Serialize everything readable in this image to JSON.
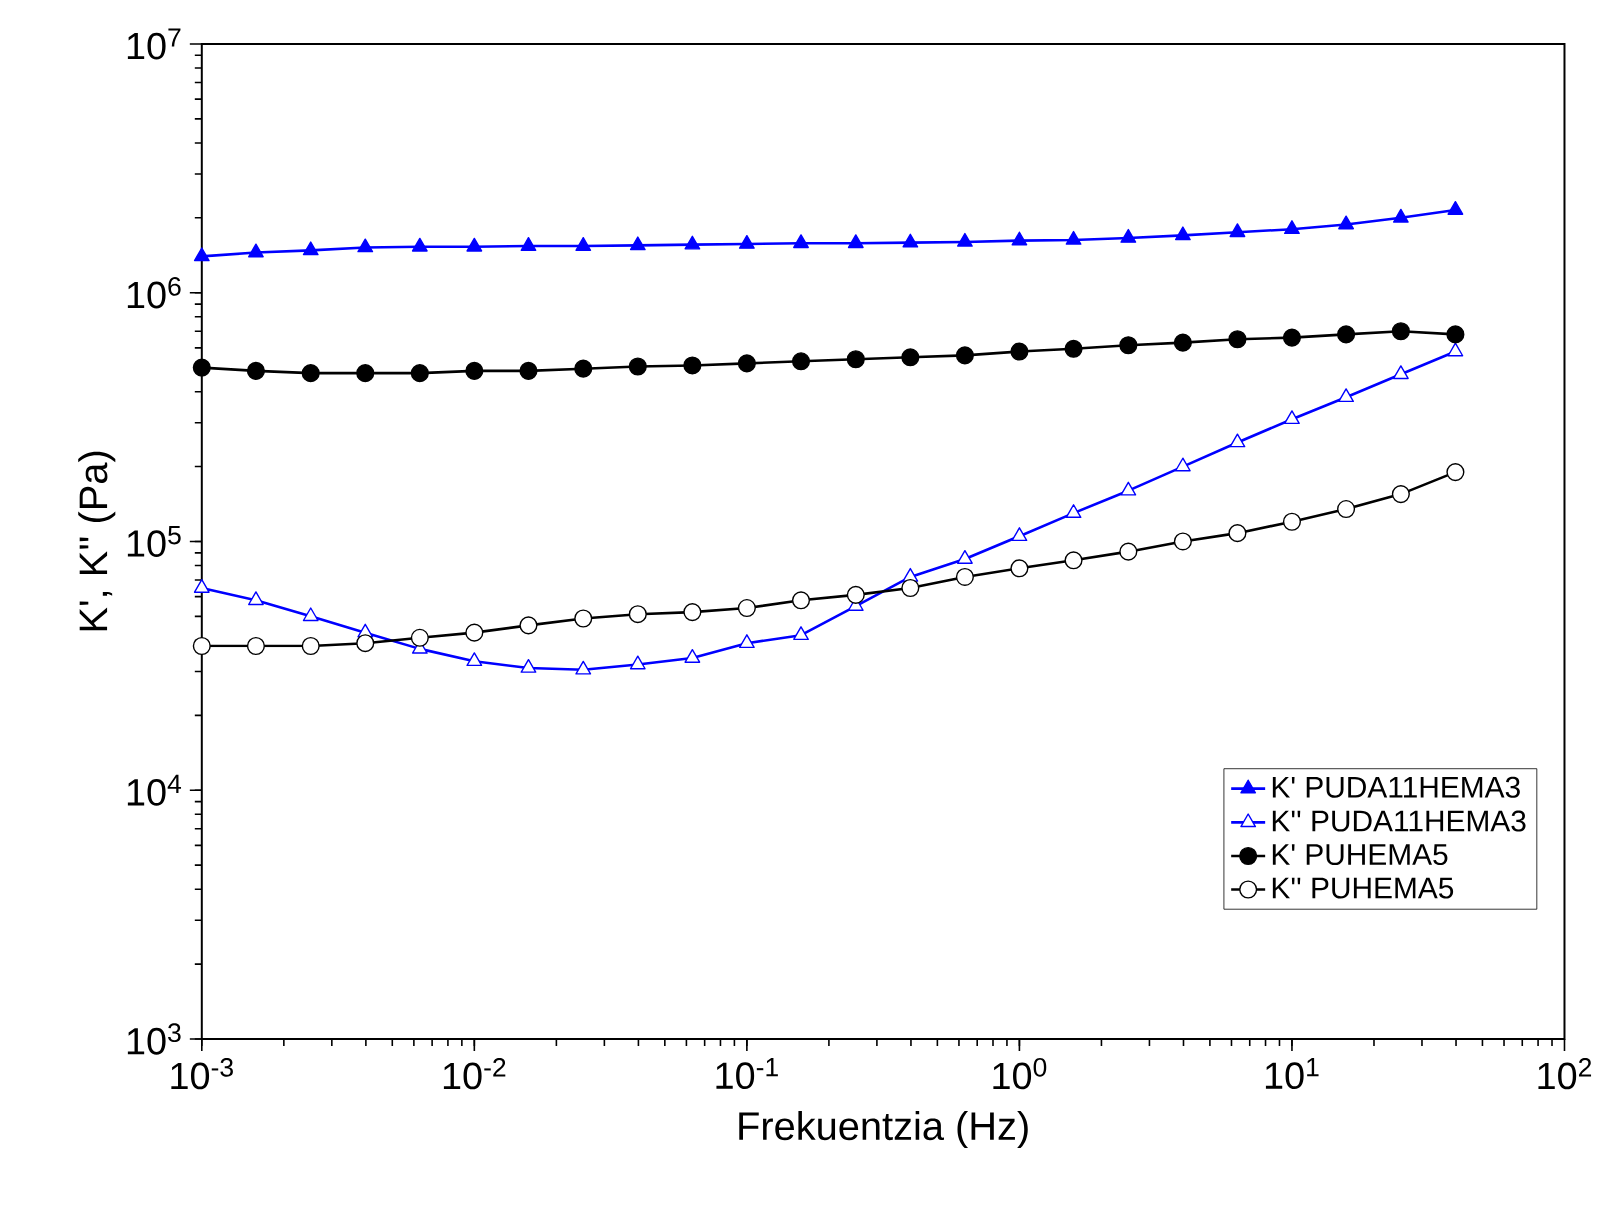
{
  "chart_data": {
    "type": "line",
    "xlabel": "Frekuentzia (Hz)",
    "ylabel": "K', K'' (Pa)",
    "log": "xy",
    "x": [
      0.001,
      0.00158,
      0.00251,
      0.00398,
      0.00631,
      0.01,
      0.0158,
      0.0251,
      0.0398,
      0.0631,
      0.1,
      0.158,
      0.251,
      0.398,
      0.631,
      1,
      1.58,
      2.51,
      3.98,
      6.31,
      10,
      15.8,
      25.1,
      39.8
    ],
    "xlim": [
      0.001,
      100
    ],
    "ylim": [
      1000,
      10000000
    ],
    "xticks": [
      {
        "value": 0.001,
        "label": "10$^{-3}$"
      },
      {
        "value": 0.01,
        "label": "10$^{-2}$"
      },
      {
        "value": 0.1,
        "label": "10$^{-1}$"
      },
      {
        "value": 1,
        "label": "10$^{0}$"
      },
      {
        "value": 10,
        "label": "10$^{1}$"
      },
      {
        "value": 100,
        "label": "10$^{2}$"
      }
    ],
    "yticks": [
      {
        "value": 1000,
        "label": "10$^{3}$"
      },
      {
        "value": 10000,
        "label": "10$^{4}$"
      },
      {
        "value": 100000,
        "label": "10$^{5}$"
      },
      {
        "value": 1000000,
        "label": "10$^{6}$"
      },
      {
        "value": 10000000,
        "label": "10$^{7}$"
      }
    ],
    "legend": "bottom right",
    "grid": false,
    "line_style": "solid",
    "series": [
      {
        "name": "K' PUDA11HEMA3",
        "color": "#0000ff",
        "marker": "triangle",
        "values": [
          1400000,
          1450000,
          1480000,
          1520000,
          1530000,
          1530000,
          1540000,
          1540000,
          1550000,
          1560000,
          1570000,
          1580000,
          1580000,
          1590000,
          1600000,
          1620000,
          1630000,
          1660000,
          1700000,
          1750000,
          1800000,
          1880000,
          2000000,
          2150000
        ]
      },
      {
        "name": "K'' PUDA11HEMA3",
        "color": "#0000ff",
        "marker": "triangle-open",
        "values": [
          65000,
          58000,
          50000,
          43000,
          37000,
          33000,
          31000,
          30500,
          32000,
          34000,
          39000,
          42000,
          55000,
          72000,
          85000,
          105000,
          130000,
          160000,
          200000,
          250000,
          310000,
          380000,
          470000,
          580000
        ]
      },
      {
        "name": "K' PUHEMA5",
        "color": "#000000",
        "marker": "circle",
        "values": [
          500000,
          485000,
          475000,
          475000,
          475000,
          485000,
          485000,
          495000,
          505000,
          510000,
          520000,
          530000,
          540000,
          550000,
          560000,
          580000,
          595000,
          615000,
          630000,
          650000,
          660000,
          680000,
          700000,
          680000
        ]
      },
      {
        "name": "K'' PUHEMA5",
        "color": "#000000",
        "marker": "circle-open",
        "values": [
          38000,
          38000,
          38000,
          39000,
          41000,
          43000,
          46000,
          49000,
          51000,
          52000,
          54000,
          58000,
          61000,
          65000,
          72000,
          78000,
          84000,
          91000,
          100000,
          108000,
          120000,
          135000,
          155000,
          190000
        ]
      }
    ]
  }
}
